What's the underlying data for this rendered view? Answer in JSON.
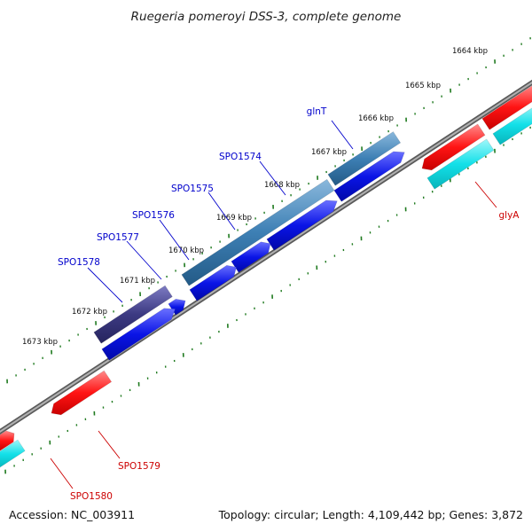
{
  "title": "Ruegeria pomeroyi DSS-3, complete genome",
  "footer": {
    "accession": "Accession: NC_003911",
    "summary": "Topology: circular; Length: 4,109,442 bp; Genes: 3,872"
  },
  "ticks": [
    "1664 kbp",
    "1665 kbp",
    "1666 kbp",
    "1667 kbp",
    "1668 kbp",
    "1669 kbp",
    "1670 kbp",
    "1671 kbp",
    "1672 kbp",
    "1673 kbp"
  ],
  "colors": {
    "backbone": "#858585",
    "forward_cds": "#ff1414",
    "forward_rna": "#12e0e8",
    "reverse_cds": "#0a14e6",
    "reverse_rna": "#3d7fb4",
    "highlight_cds": "#3c3a82",
    "tick_mark": "#1f7a1f",
    "forward_label": "#cc0000",
    "reverse_label": "#0000cc"
  },
  "gene_labels": {
    "forward": [
      "glyA",
      "SPO1579",
      "SPO1580"
    ],
    "reverse": [
      "glnT",
      "SPO1574",
      "SPO1575",
      "SPO1576",
      "SPO1577",
      "SPO1578"
    ]
  }
}
